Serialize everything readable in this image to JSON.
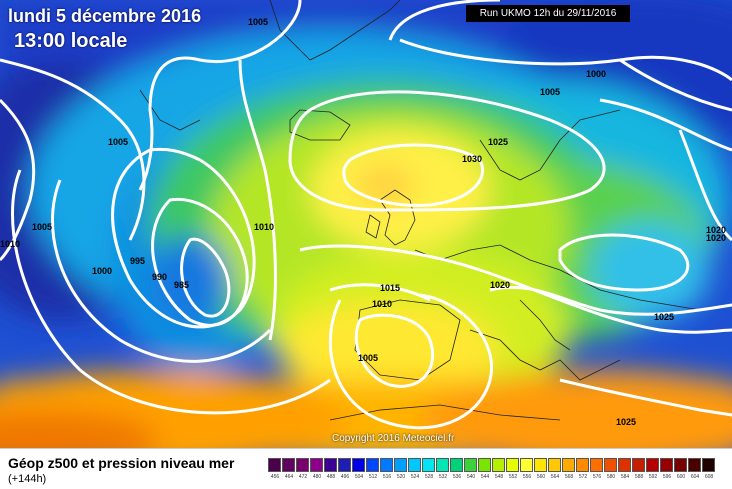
{
  "header": {
    "date_line": "lundi 5 décembre 2016",
    "time_line": "13:00 locale",
    "run_info": "Run UKMO 12h du 29/11/2016"
  },
  "copyright": "Copyright 2016 Meteociel.fr",
  "legend": {
    "title": "Géop z500 et pression niveau mer",
    "subtitle": "(+144h)",
    "scale_colors": [
      "#4b004b",
      "#600060",
      "#78006e",
      "#8c008c",
      "#3c0096",
      "#1e1eb4",
      "#0000e6",
      "#0046ff",
      "#0078ff",
      "#00a0ff",
      "#00c8ff",
      "#00e6f0",
      "#00e6b4",
      "#00d278",
      "#3cd23c",
      "#78e600",
      "#b4f000",
      "#e6ff00",
      "#ffff32",
      "#ffe600",
      "#ffc800",
      "#ffaa00",
      "#ff8c00",
      "#ff6e00",
      "#f05000",
      "#dc3200",
      "#c81e00",
      "#b40000",
      "#960000",
      "#780000",
      "#4b0000",
      "#1e0000"
    ],
    "scale_labels": [
      "456",
      "464",
      "472",
      "480",
      "488",
      "496",
      "504",
      "512",
      "516",
      "520",
      "524",
      "528",
      "532",
      "536",
      "540",
      "544",
      "548",
      "552",
      "556",
      "560",
      "564",
      "568",
      "572",
      "576",
      "580",
      "584",
      "588",
      "592",
      "596",
      "600",
      "604",
      "608"
    ]
  },
  "isobar_labels": [
    {
      "text": "1005"
    },
    {
      "text": "1005"
    },
    {
      "text": "1005"
    },
    {
      "text": "1000"
    },
    {
      "text": "995"
    },
    {
      "text": "990"
    },
    {
      "text": "985"
    },
    {
      "text": "1010"
    },
    {
      "text": "1010"
    },
    {
      "text": "1005"
    },
    {
      "text": "1000"
    },
    {
      "text": "1025"
    },
    {
      "text": "1030"
    },
    {
      "text": "1015"
    },
    {
      "text": "1010"
    },
    {
      "text": "1020"
    },
    {
      "text": "1025"
    },
    {
      "text": "1025"
    },
    {
      "text": "1020"
    },
    {
      "text": "1020"
    },
    {
      "text": "1005"
    }
  ]
}
